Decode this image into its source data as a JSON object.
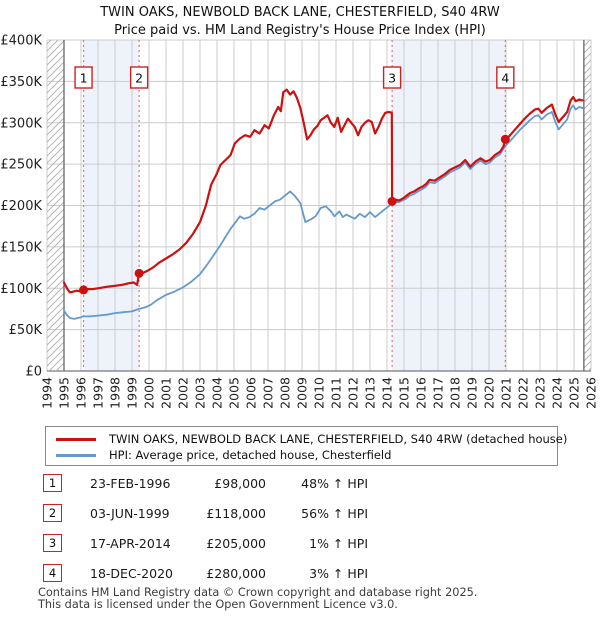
{
  "chart": {
    "title": "TWIN OAKS, NEWBOLD BACK LANE, CHESTERFIELD, S40 4RW",
    "subtitle": "Price paid vs. HM Land Registry's House Price Index (HPI)"
  },
  "legend": [
    {
      "label": "TWIN OAKS, NEWBOLD BACK LANE, CHESTERFIELD, S40 4RW (detached house)",
      "color": "#cc1111"
    },
    {
      "label": "HPI: Average price, detached house, Chesterfield",
      "color": "#6699cc"
    }
  ],
  "transactions": [
    {
      "num": "1",
      "date": "23-FEB-1996",
      "price": "£98,000",
      "hpi": "48% ↑ HPI"
    },
    {
      "num": "2",
      "date": "03-JUN-1999",
      "price": "£118,000",
      "hpi": "56% ↑ HPI"
    },
    {
      "num": "3",
      "date": "17-APR-2014",
      "price": "£205,000",
      "hpi": "1% ↑ HPI"
    },
    {
      "num": "4",
      "date": "18-DEC-2020",
      "price": "£280,000",
      "hpi": "3% ↑ HPI"
    }
  ],
  "footer": {
    "line1": "Contains HM Land Registry data © Crown copyright and database right 2025.",
    "line2": "This data is licensed under the Open Government Licence v3.0."
  },
  "chart_data": {
    "type": "line",
    "title": "TWIN OAKS, NEWBOLD BACK LANE, CHESTERFIELD, S40 4RW",
    "subtitle": "Price paid vs. HM Land Registry's House Price Index (HPI)",
    "y_unit": "GBP thousands",
    "ylim": [
      0,
      400
    ],
    "xlim": [
      1994,
      2026
    ],
    "grid": true,
    "legend_position": "below",
    "y_ticks": [
      {
        "label": "£0",
        "value": 0
      },
      {
        "label": "£50K",
        "value": 50
      },
      {
        "label": "£100K",
        "value": 100
      },
      {
        "label": "£150K",
        "value": 150
      },
      {
        "label": "£200K",
        "value": 200
      },
      {
        "label": "£250K",
        "value": 250
      },
      {
        "label": "£300K",
        "value": 300
      },
      {
        "label": "£350K",
        "value": 350
      },
      {
        "label": "£400K",
        "value": 400
      }
    ],
    "x_ticks": [
      "1994",
      "1995",
      "1996",
      "1997",
      "1998",
      "1999",
      "2000",
      "2001",
      "2002",
      "2003",
      "2004",
      "2005",
      "2006",
      "2007",
      "2008",
      "2009",
      "2010",
      "2011",
      "2012",
      "2013",
      "2014",
      "2015",
      "2016",
      "2017",
      "2018",
      "2019",
      "2020",
      "2021",
      "2022",
      "2023",
      "2024",
      "2025",
      "2026"
    ],
    "bands": [
      [
        1996.15,
        1999.42
      ],
      [
        2014.3,
        2020.96
      ]
    ],
    "hatch_regions": [
      [
        1994,
        1995.0
      ],
      [
        2025.58,
        2026
      ]
    ],
    "band_color": "#eef2fb",
    "grid_color": "#cccccc",
    "dashed_line_color": "#e57373",
    "sales": [
      {
        "n": "1",
        "date": "23-FEB-1996",
        "year": 1996.15,
        "price_k": 98
      },
      {
        "n": "2",
        "date": "03-JUN-1999",
        "year": 1999.42,
        "price_k": 118
      },
      {
        "n": "3",
        "date": "17-APR-2014",
        "year": 2014.3,
        "price_k": 205
      },
      {
        "n": "4",
        "date": "18-DEC-2020",
        "year": 2020.96,
        "price_k": 280
      }
    ],
    "series": [
      {
        "name": "HPI: Average price, detached house, Chesterfield",
        "color": "#6699cc",
        "width": 1.8,
        "points": [
          [
            1995.0,
            73
          ],
          [
            1995.2,
            67
          ],
          [
            1995.35,
            64
          ],
          [
            1995.6,
            63
          ],
          [
            1995.8,
            64
          ],
          [
            1996.0,
            65
          ],
          [
            1996.15,
            66
          ],
          [
            1996.5,
            66
          ],
          [
            1997.0,
            67
          ],
          [
            1997.5,
            68
          ],
          [
            1998.0,
            70
          ],
          [
            1998.5,
            71
          ],
          [
            1999.0,
            72
          ],
          [
            1999.42,
            75
          ],
          [
            1999.8,
            77
          ],
          [
            2000.1,
            80
          ],
          [
            2000.5,
            86
          ],
          [
            2001.0,
            92
          ],
          [
            2001.5,
            96
          ],
          [
            2002.0,
            101
          ],
          [
            2002.5,
            108
          ],
          [
            2003.0,
            117
          ],
          [
            2003.4,
            128
          ],
          [
            2003.8,
            140
          ],
          [
            2004.2,
            152
          ],
          [
            2004.5,
            162
          ],
          [
            2004.8,
            172
          ],
          [
            2005.1,
            180
          ],
          [
            2005.35,
            187
          ],
          [
            2005.6,
            184
          ],
          [
            2005.9,
            186
          ],
          [
            2006.2,
            190
          ],
          [
            2006.5,
            197
          ],
          [
            2006.8,
            195
          ],
          [
            2007.1,
            200
          ],
          [
            2007.4,
            205
          ],
          [
            2007.7,
            207
          ],
          [
            2008.0,
            212
          ],
          [
            2008.3,
            217
          ],
          [
            2008.6,
            211
          ],
          [
            2008.9,
            203
          ],
          [
            2009.2,
            180
          ],
          [
            2009.5,
            183
          ],
          [
            2009.8,
            187
          ],
          [
            2010.1,
            197
          ],
          [
            2010.4,
            199
          ],
          [
            2010.7,
            193
          ],
          [
            2010.9,
            187
          ],
          [
            2011.2,
            193
          ],
          [
            2011.4,
            186
          ],
          [
            2011.6,
            189
          ],
          [
            2011.9,
            186
          ],
          [
            2012.1,
            184
          ],
          [
            2012.4,
            190
          ],
          [
            2012.7,
            186
          ],
          [
            2013.0,
            192
          ],
          [
            2013.3,
            186
          ],
          [
            2013.6,
            191
          ],
          [
            2013.9,
            196
          ],
          [
            2014.1,
            199
          ],
          [
            2014.3,
            203
          ],
          [
            2014.5,
            204
          ],
          [
            2014.7,
            204
          ],
          [
            2014.9,
            206
          ],
          [
            2015.1,
            208
          ],
          [
            2015.35,
            212
          ],
          [
            2015.6,
            214
          ],
          [
            2015.9,
            218
          ],
          [
            2016.1,
            220
          ],
          [
            2016.3,
            223
          ],
          [
            2016.5,
            228
          ],
          [
            2016.8,
            227
          ],
          [
            2017.1,
            231
          ],
          [
            2017.4,
            235
          ],
          [
            2017.7,
            240
          ],
          [
            2018.0,
            243
          ],
          [
            2018.3,
            246
          ],
          [
            2018.6,
            252
          ],
          [
            2018.9,
            244
          ],
          [
            2019.2,
            250
          ],
          [
            2019.5,
            254
          ],
          [
            2019.8,
            250
          ],
          [
            2020.05,
            252
          ],
          [
            2020.35,
            258
          ],
          [
            2020.65,
            262
          ],
          [
            2020.96,
            272
          ],
          [
            2021.2,
            277
          ],
          [
            2021.5,
            284
          ],
          [
            2021.8,
            291
          ],
          [
            2022.1,
            297
          ],
          [
            2022.4,
            303
          ],
          [
            2022.7,
            308
          ],
          [
            2022.9,
            309
          ],
          [
            2023.1,
            304
          ],
          [
            2023.4,
            310
          ],
          [
            2023.7,
            313
          ],
          [
            2023.9,
            301
          ],
          [
            2024.1,
            292
          ],
          [
            2024.35,
            298
          ],
          [
            2024.6,
            304
          ],
          [
            2024.8,
            317
          ],
          [
            2024.95,
            321
          ],
          [
            2025.1,
            316
          ],
          [
            2025.3,
            319
          ],
          [
            2025.5,
            318
          ]
        ]
      },
      {
        "name": "TWIN OAKS, NEWBOLD BACK LANE, CHESTERFIELD, S40 4RW (detached house)",
        "color": "#cc1111",
        "width": 2.2,
        "points": [
          [
            1995.0,
            107
          ],
          [
            1995.2,
            99
          ],
          [
            1995.35,
            95
          ],
          [
            1995.55,
            96
          ],
          [
            1995.75,
            97
          ],
          [
            1996.0,
            96
          ],
          [
            1996.15,
            98
          ],
          [
            1996.4,
            99
          ],
          [
            1996.7,
            99
          ],
          [
            1997.0,
            100
          ],
          [
            1997.3,
            101
          ],
          [
            1997.6,
            102
          ],
          [
            1998.0,
            103
          ],
          [
            1998.4,
            104
          ],
          [
            1998.8,
            106
          ],
          [
            1999.1,
            107
          ],
          [
            1999.3,
            104
          ],
          [
            1999.42,
            118
          ],
          [
            1999.7,
            119
          ],
          [
            2000.0,
            122
          ],
          [
            2000.3,
            126
          ],
          [
            2000.6,
            131
          ],
          [
            2001.0,
            136
          ],
          [
            2001.4,
            141
          ],
          [
            2001.8,
            147
          ],
          [
            2002.2,
            155
          ],
          [
            2002.6,
            166
          ],
          [
            2003.0,
            180
          ],
          [
            2003.35,
            200
          ],
          [
            2003.65,
            225
          ],
          [
            2003.95,
            237
          ],
          [
            2004.2,
            249
          ],
          [
            2004.5,
            255
          ],
          [
            2004.8,
            261
          ],
          [
            2005.05,
            275
          ],
          [
            2005.35,
            281
          ],
          [
            2005.65,
            285
          ],
          [
            2005.95,
            283
          ],
          [
            2006.2,
            291
          ],
          [
            2006.5,
            287
          ],
          [
            2006.8,
            297
          ],
          [
            2007.05,
            293
          ],
          [
            2007.35,
            309
          ],
          [
            2007.6,
            319
          ],
          [
            2007.75,
            314
          ],
          [
            2007.9,
            337
          ],
          [
            2008.1,
            340
          ],
          [
            2008.3,
            334
          ],
          [
            2008.5,
            338
          ],
          [
            2008.7,
            330
          ],
          [
            2008.9,
            318
          ],
          [
            2009.1,
            300
          ],
          [
            2009.3,
            280
          ],
          [
            2009.5,
            285
          ],
          [
            2009.7,
            292
          ],
          [
            2009.9,
            296
          ],
          [
            2010.1,
            303
          ],
          [
            2010.3,
            306
          ],
          [
            2010.5,
            309
          ],
          [
            2010.7,
            300
          ],
          [
            2010.9,
            295
          ],
          [
            2011.1,
            306
          ],
          [
            2011.3,
            289
          ],
          [
            2011.5,
            297
          ],
          [
            2011.7,
            305
          ],
          [
            2011.9,
            300
          ],
          [
            2012.1,
            295
          ],
          [
            2012.3,
            285
          ],
          [
            2012.5,
            295
          ],
          [
            2012.7,
            300
          ],
          [
            2012.9,
            303
          ],
          [
            2013.1,
            301
          ],
          [
            2013.3,
            287
          ],
          [
            2013.5,
            295
          ],
          [
            2013.7,
            305
          ],
          [
            2013.9,
            312
          ],
          [
            2014.1,
            313
          ],
          [
            2014.28,
            312
          ],
          [
            2014.3,
            205
          ],
          [
            2014.5,
            207
          ],
          [
            2014.7,
            206
          ],
          [
            2014.9,
            208
          ],
          [
            2015.1,
            211
          ],
          [
            2015.35,
            215
          ],
          [
            2015.6,
            217
          ],
          [
            2015.9,
            221
          ],
          [
            2016.1,
            223
          ],
          [
            2016.3,
            226
          ],
          [
            2016.5,
            231
          ],
          [
            2016.8,
            230
          ],
          [
            2017.1,
            234
          ],
          [
            2017.4,
            238
          ],
          [
            2017.7,
            243
          ],
          [
            2018.0,
            246
          ],
          [
            2018.3,
            249
          ],
          [
            2018.6,
            255
          ],
          [
            2018.9,
            247
          ],
          [
            2019.2,
            253
          ],
          [
            2019.5,
            257
          ],
          [
            2019.8,
            253
          ],
          [
            2020.05,
            255
          ],
          [
            2020.35,
            261
          ],
          [
            2020.65,
            265
          ],
          [
            2020.85,
            271
          ],
          [
            2020.96,
            280
          ],
          [
            2021.2,
            284
          ],
          [
            2021.5,
            291
          ],
          [
            2021.8,
            298
          ],
          [
            2022.1,
            305
          ],
          [
            2022.4,
            311
          ],
          [
            2022.7,
            316
          ],
          [
            2022.9,
            317
          ],
          [
            2023.1,
            312
          ],
          [
            2023.4,
            318
          ],
          [
            2023.7,
            322
          ],
          [
            2023.9,
            310
          ],
          [
            2024.1,
            301
          ],
          [
            2024.35,
            307
          ],
          [
            2024.6,
            313
          ],
          [
            2024.8,
            327
          ],
          [
            2024.95,
            331
          ],
          [
            2025.1,
            326
          ],
          [
            2025.3,
            328
          ],
          [
            2025.5,
            327
          ]
        ]
      }
    ]
  }
}
